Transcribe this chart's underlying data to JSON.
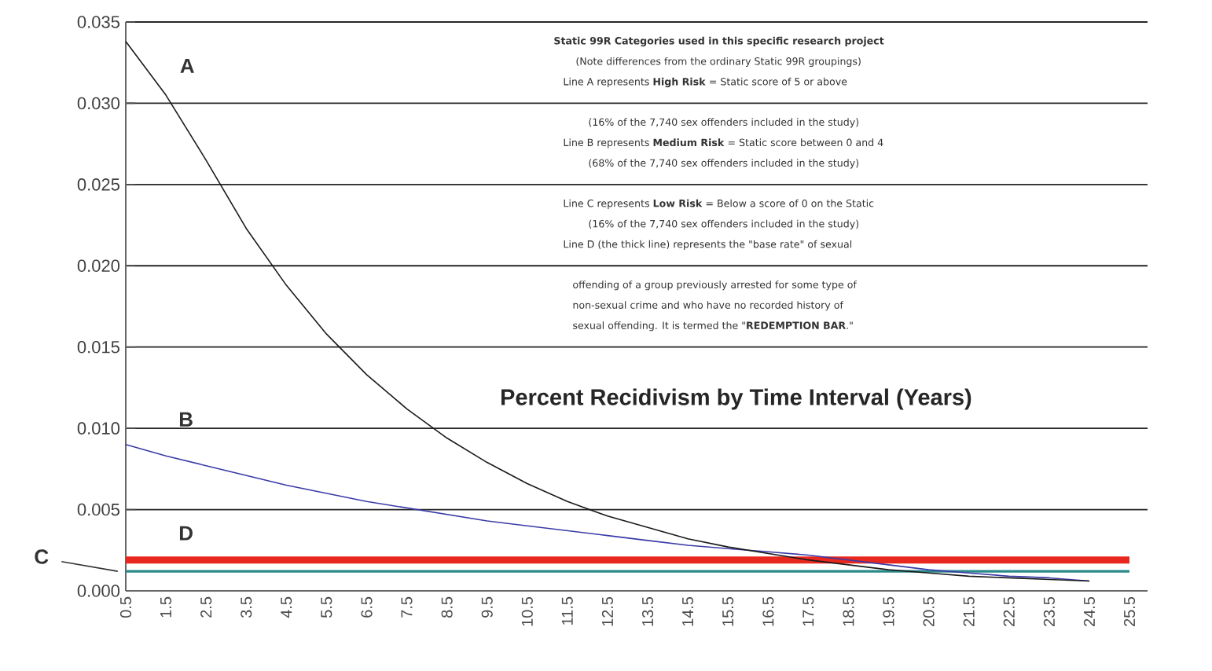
{
  "chart_data": {
    "type": "line",
    "title": "Percent Recidivism by Time Interval (Years)",
    "categories": [
      "0.5",
      "1.5",
      "2.5",
      "3.5",
      "4.5",
      "5.5",
      "6.5",
      "7.5",
      "8.5",
      "9.5",
      "10.5",
      "11.5",
      "12.5",
      "13.5",
      "14.5",
      "15.5",
      "16.5",
      "17.5",
      "18.5",
      "19.5",
      "20.5",
      "21.5",
      "22.5",
      "23.5",
      "24.5",
      "25.5"
    ],
    "series": [
      {
        "name": "A",
        "color": "#1a1a1a",
        "values": [
          0.0338,
          0.0305,
          0.0265,
          0.0223,
          0.0188,
          0.0158,
          0.0133,
          0.0112,
          0.0094,
          0.0079,
          0.0066,
          0.0055,
          0.0046,
          0.0039,
          0.0032,
          0.0027,
          0.0023,
          0.0019,
          0.0016,
          0.0013,
          0.0011,
          0.0009,
          0.0008,
          0.0007,
          0.0006,
          null
        ]
      },
      {
        "name": "B",
        "color": "#3a3aa8",
        "values": [
          0.009,
          0.0083,
          0.0077,
          0.0071,
          0.0065,
          0.006,
          0.0055,
          0.0051,
          0.0047,
          0.0043,
          0.004,
          0.0037,
          0.0034,
          0.0031,
          0.0028,
          0.0026,
          0.0024,
          0.0022,
          0.0019,
          0.0016,
          0.0013,
          0.0011,
          0.0009,
          0.0008,
          0.0006,
          null
        ]
      },
      {
        "name": "C",
        "color": "#2a8a8a",
        "values": [
          0.0012,
          0.0012,
          0.0012,
          0.0012,
          0.0012,
          0.0012,
          0.0012,
          0.0012,
          0.0012,
          0.0012,
          0.0012,
          0.0012,
          0.0012,
          0.0012,
          0.0012,
          0.0012,
          0.0012,
          0.0012,
          0.0012,
          0.0012,
          0.0012,
          0.0012,
          0.0012,
          0.0012,
          0.0012,
          0.0012
        ]
      },
      {
        "name": "D",
        "color": "#e8281e",
        "values": [
          0.0019,
          0.0019,
          0.0019,
          0.0019,
          0.0019,
          0.0019,
          0.0019,
          0.0019,
          0.0019,
          0.0019,
          0.0019,
          0.0019,
          0.0019,
          0.0019,
          0.0019,
          0.0019,
          0.0019,
          0.0019,
          0.0019,
          0.0019,
          0.0019,
          0.0019,
          0.0019,
          0.0019,
          0.0019,
          0.0019
        ]
      }
    ],
    "ylim": [
      0,
      0.035
    ],
    "yticks": [
      {
        "value": 0,
        "label": "0.000"
      },
      {
        "value": 0.005,
        "label": "0.005"
      },
      {
        "value": 0.01,
        "label": "0.010"
      },
      {
        "value": 0.015,
        "label": "0.015"
      },
      {
        "value": 0.02,
        "label": "0.020"
      },
      {
        "value": 0.025,
        "label": "0.025"
      },
      {
        "value": 0.03,
        "label": "0.030"
      },
      {
        "value": 0.035,
        "label": "0.035"
      }
    ],
    "grid": "y",
    "annotations": [
      "Static 99R Categories used in this specific research project",
      "(Note differences from the ordinary Static 99R groupings)",
      "Line A represents **High Risk** = Static score of 5 or above",
      "(16% of the 7,740 sex offenders included in the study)",
      "Line B represents **Medium Risk** = Static score between 0 and 4",
      "(68% of the 7,740 sex offenders included in the study)",
      "Line C represents **Low Risk** = Below a score of 0 on the Static",
      "(16% of the 7,740 sex offenders included in the study)",
      "Line D (the thick line) represents the \"base rate\" of sexual",
      "offending of a group previously arrested for some type of",
      "non-sexual crime and who have no recorded history of",
      "sexual offending. It is termed the \"**REDEMPTION BAR**.\""
    ]
  }
}
